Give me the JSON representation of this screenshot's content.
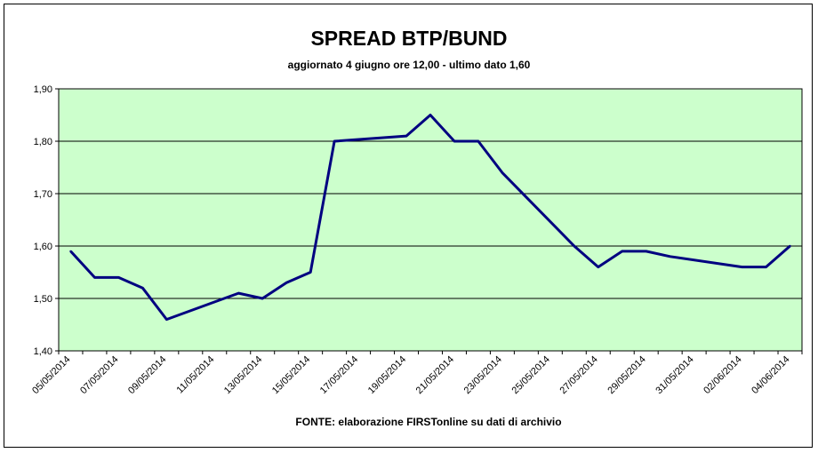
{
  "chart_data": {
    "type": "line",
    "title": "SPREAD BTP/BUND",
    "subtitle": "aggiornato 4 giugno ore 12,00 - ultimo dato 1,60",
    "source": "FONTE:  elaborazione FIRSTonline su dati di archivio",
    "xlabel": "",
    "ylabel": "",
    "ylim": [
      1.4,
      1.9
    ],
    "yticks": [
      "1,40",
      "1,50",
      "1,60",
      "1,70",
      "1,80",
      "1,90"
    ],
    "xticks": [
      "05/05/2014",
      "07/05/2014",
      "09/05/2014",
      "11/05/2014",
      "13/05/2014",
      "15/05/2014",
      "17/05/2014",
      "19/05/2014",
      "21/05/2014",
      "23/05/2014",
      "25/05/2014",
      "27/05/2014",
      "29/05/2014",
      "31/05/2014",
      "02/06/2014",
      "04/06/2014"
    ],
    "grid": true,
    "colors": {
      "plot_background": "#ccffcc",
      "line": "#000080",
      "gridline": "#000000"
    },
    "series": [
      {
        "x": [
          "05/05/2014",
          "06/05/2014",
          "07/05/2014",
          "08/05/2014",
          "09/05/2014",
          "12/05/2014",
          "13/05/2014",
          "14/05/2014",
          "15/05/2014",
          "16/05/2014",
          "19/05/2014",
          "20/05/2014",
          "21/05/2014",
          "22/05/2014",
          "23/05/2014",
          "26/05/2014",
          "27/05/2014",
          "28/05/2014",
          "29/05/2014",
          "30/05/2014",
          "02/06/2014",
          "03/06/2014",
          "04/06/2014"
        ],
        "values": [
          1.59,
          1.54,
          1.54,
          1.52,
          1.46,
          1.51,
          1.5,
          1.53,
          1.55,
          1.8,
          1.81,
          1.85,
          1.8,
          1.8,
          1.74,
          1.6,
          1.56,
          1.59,
          1.59,
          1.58,
          1.56,
          1.56,
          1.6
        ]
      }
    ]
  }
}
